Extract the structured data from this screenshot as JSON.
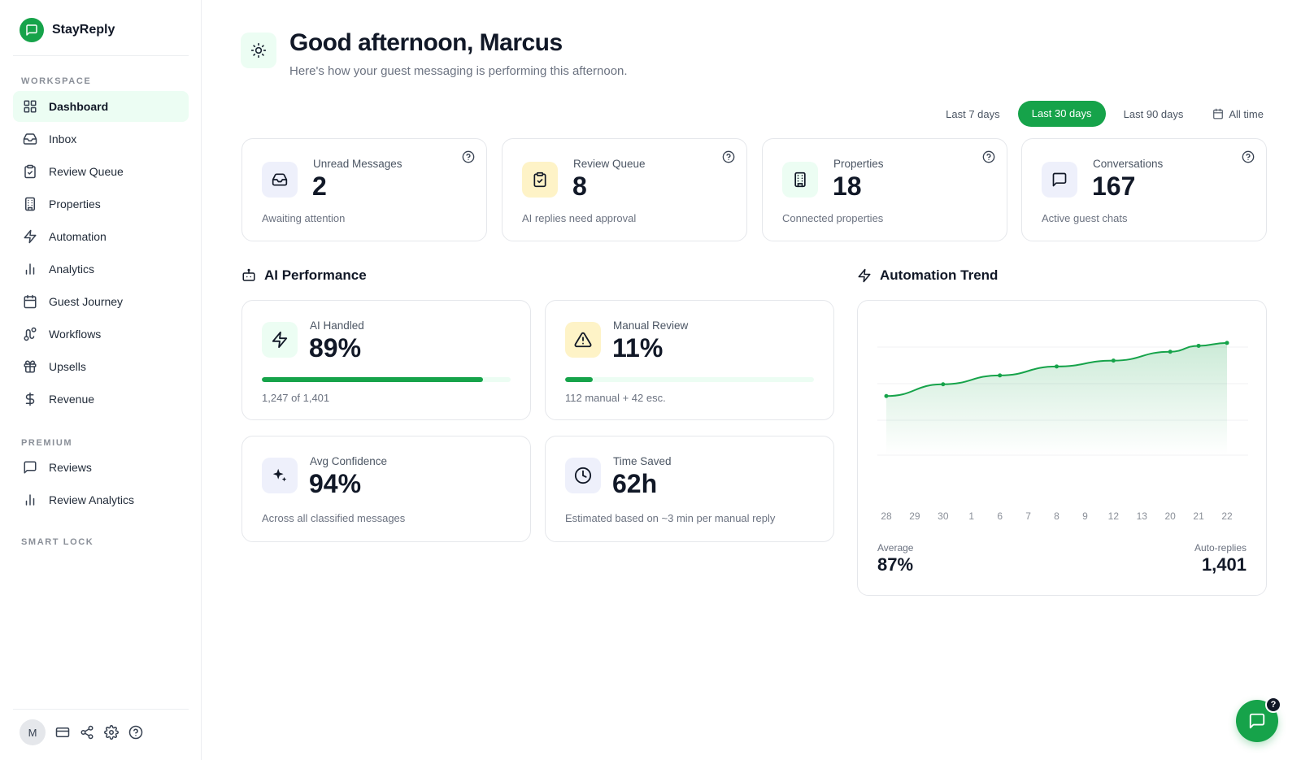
{
  "brand": {
    "name": "StayReply"
  },
  "sidebar": {
    "sections": {
      "workspace": "WORKSPACE",
      "premium": "PREMIUM",
      "smart_lock": "SMART LOCK"
    },
    "workspace_items": [
      {
        "label": "Dashboard",
        "icon": "grid-icon",
        "active": true
      },
      {
        "label": "Inbox",
        "icon": "inbox-icon"
      },
      {
        "label": "Review Queue",
        "icon": "clipboard-check-icon"
      },
      {
        "label": "Properties",
        "icon": "building-icon"
      },
      {
        "label": "Automation",
        "icon": "bolt-icon"
      },
      {
        "label": "Analytics",
        "icon": "bar-chart-icon"
      },
      {
        "label": "Guest Journey",
        "icon": "calendar-icon"
      },
      {
        "label": "Workflows",
        "icon": "route-icon"
      },
      {
        "label": "Upsells",
        "icon": "gift-icon"
      },
      {
        "label": "Revenue",
        "icon": "dollar-icon"
      }
    ],
    "premium_items": [
      {
        "label": "Reviews",
        "icon": "message-square-icon"
      },
      {
        "label": "Review Analytics",
        "icon": "bar-chart-icon"
      }
    ],
    "user_initial": "M"
  },
  "header": {
    "title": "Good afternoon, Marcus",
    "subtitle": "Here's how your guest messaging is performing this afternoon."
  },
  "range": {
    "options": [
      "Last 7 days",
      "Last 30 days",
      "Last 90 days",
      "All time"
    ],
    "active": "Last 30 days"
  },
  "stats": [
    {
      "label": "Unread Messages",
      "value": "2",
      "sub": "Awaiting attention",
      "icon": "inbox-icon"
    },
    {
      "label": "Review Queue",
      "value": "8",
      "sub": "AI replies need approval",
      "icon": "clipboard-check-icon"
    },
    {
      "label": "Properties",
      "value": "18",
      "sub": "Connected properties",
      "icon": "building-icon"
    },
    {
      "label": "Conversations",
      "value": "167",
      "sub": "Active guest chats",
      "icon": "message-square-icon"
    }
  ],
  "ai_performance": {
    "title": "AI Performance",
    "cards": [
      {
        "label": "AI Handled",
        "value": "89%",
        "sub": "1,247 of 1,401",
        "progress": 0.89
      },
      {
        "label": "Manual Review",
        "value": "11%",
        "sub": "112 manual + 42 esc.",
        "progress": 0.11
      },
      {
        "label": "Avg Confidence",
        "value": "94%",
        "sub": "Across all classified messages"
      },
      {
        "label": "Time Saved",
        "value": "62h",
        "sub": "Estimated based on ~3 min per manual reply"
      }
    ]
  },
  "automation_trend": {
    "title": "Automation Trend",
    "average_label": "Average",
    "average_value": "87%",
    "auto_label": "Auto-replies",
    "auto_value": "1,401"
  },
  "chart_data": {
    "type": "area",
    "categories": [
      "28",
      "29",
      "30",
      "1",
      "6",
      "7",
      "8",
      "9",
      "12",
      "13",
      "20",
      "21",
      "22"
    ],
    "points": [
      {
        "x": "28",
        "y": 80
      },
      {
        "x": "30",
        "y": 82
      },
      {
        "x": "6",
        "y": 83.5
      },
      {
        "x": "8",
        "y": 85
      },
      {
        "x": "12",
        "y": 86
      },
      {
        "x": "20",
        "y": 87.5
      },
      {
        "x": "21",
        "y": 88.5
      },
      {
        "x": "22",
        "y": 89
      }
    ],
    "ylim": [
      70,
      92
    ],
    "grid": true,
    "colors": {
      "line": "#16a34a",
      "fill": "#16a34a"
    }
  },
  "colors": {
    "accent": "#16a34a",
    "accent_soft": "#ecfdf3",
    "amber_soft": "#fef3c7",
    "lavender_soft": "#eef0fb"
  }
}
